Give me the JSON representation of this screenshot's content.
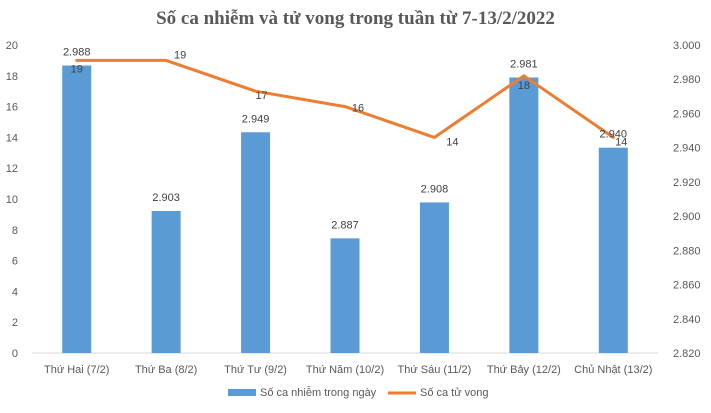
{
  "chart_data": {
    "type": "bar",
    "title": "Số ca nhiễm và tử vong trong tuần từ 7-13/2/2022",
    "categories": [
      "Thứ Hai (7/2)",
      "Thứ Ba (8/2)",
      "Thứ Tư (9/2)",
      "Thứ Năm (10/2)",
      "Thứ Sáu (11/2)",
      "Thứ Bảy (12/2)",
      "Chủ Nhật (13/2)"
    ],
    "series": [
      {
        "name": "Số ca nhiễm trong ngày",
        "type": "bar",
        "axis": "right",
        "color": "#5b9bd5",
        "values": [
          2988,
          2903,
          2949,
          2887,
          2908,
          2981,
          2940
        ],
        "labels": [
          "2.988",
          "2.903",
          "2.949",
          "2.887",
          "2.908",
          "2.981",
          "2.940"
        ]
      },
      {
        "name": "Số ca tử vong",
        "type": "line",
        "axis": "left",
        "color": "#ed7d31",
        "values": [
          19,
          19,
          17,
          16,
          14,
          18,
          14
        ],
        "labels": [
          "19",
          "19",
          "17",
          "16",
          "14",
          "18",
          "14"
        ]
      }
    ],
    "y_left": {
      "min": 0,
      "max": 20,
      "ticks": [
        "0",
        "2",
        "4",
        "6",
        "8",
        "10",
        "12",
        "14",
        "16",
        "18",
        "20"
      ]
    },
    "y_right": {
      "min": 2820,
      "max": 3000,
      "ticks": [
        "2.820",
        "2.840",
        "2.860",
        "2.880",
        "2.900",
        "2.920",
        "2.940",
        "2.960",
        "2.980",
        "3.000"
      ]
    },
    "grid": false,
    "legend_position": "bottom"
  }
}
